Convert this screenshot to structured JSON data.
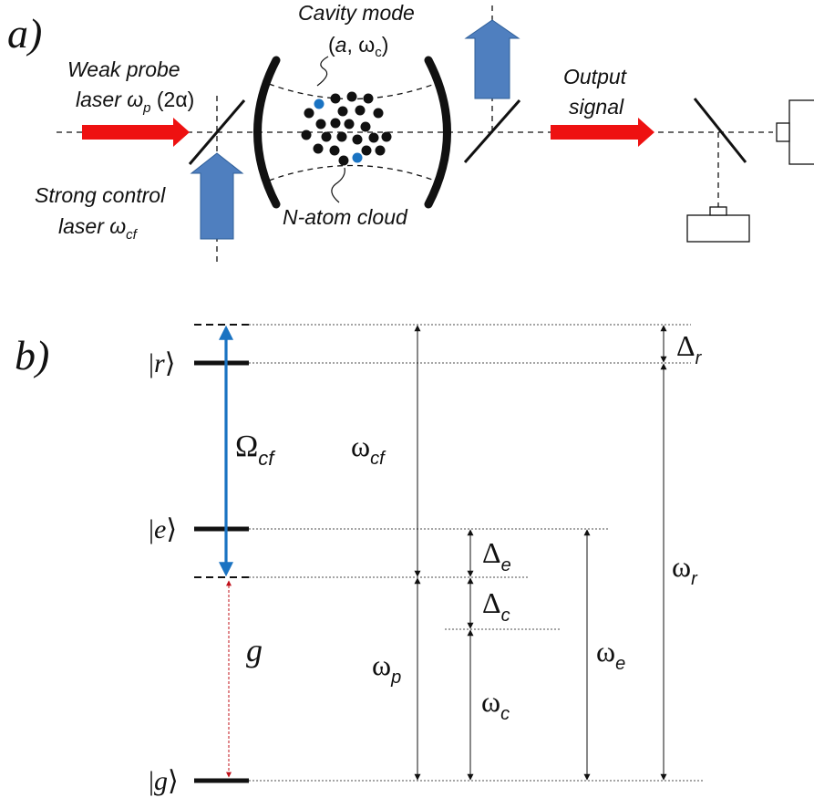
{
  "panel_a": {
    "label": "a)",
    "cavity_mode_line1": "Cavity mode",
    "cavity_mode_line2": {
      "open": "(",
      "a": "a",
      "sep": ", ω",
      "sub": "c",
      "close": ")"
    },
    "weak_probe_line1": "Weak probe",
    "weak_probe_line2": {
      "pre": "laser ω",
      "sub": "p",
      "post": " (2α)"
    },
    "strong_control_line1": "Strong control",
    "strong_control_line2": {
      "pre": "laser ω",
      "sub": "cf"
    },
    "atom_cloud": "N-atom cloud",
    "output_line1": "Output",
    "output_line2": "signal",
    "colors": {
      "probe": "#ee1111",
      "control": "#4f7fbf",
      "control_edge": "#2f5f9a",
      "atom": "#111111",
      "atom_special": "#1a73c2"
    }
  },
  "panel_b": {
    "label": "b)",
    "states": {
      "r": "r",
      "e": "e",
      "g": "g"
    },
    "omega_cf_label": {
      "main": "Ω",
      "sub": "cf"
    },
    "g_label": "g",
    "w_cf": {
      "main": "ω",
      "sub": "cf"
    },
    "w_p": {
      "main": "ω",
      "sub": "p"
    },
    "w_c": {
      "main": "ω",
      "sub": "c"
    },
    "w_e": {
      "main": "ω",
      "sub": "e"
    },
    "w_r": {
      "main": "ω",
      "sub": "r"
    },
    "delta_r": {
      "main": "Δ",
      "sub": "r"
    },
    "delta_e": {
      "main": "Δ",
      "sub": "e"
    },
    "delta_c": {
      "main": "Δ",
      "sub": "c"
    },
    "colors": {
      "control_arrow": "#1a73c2",
      "coupling_arrow": "#c0101a"
    }
  }
}
